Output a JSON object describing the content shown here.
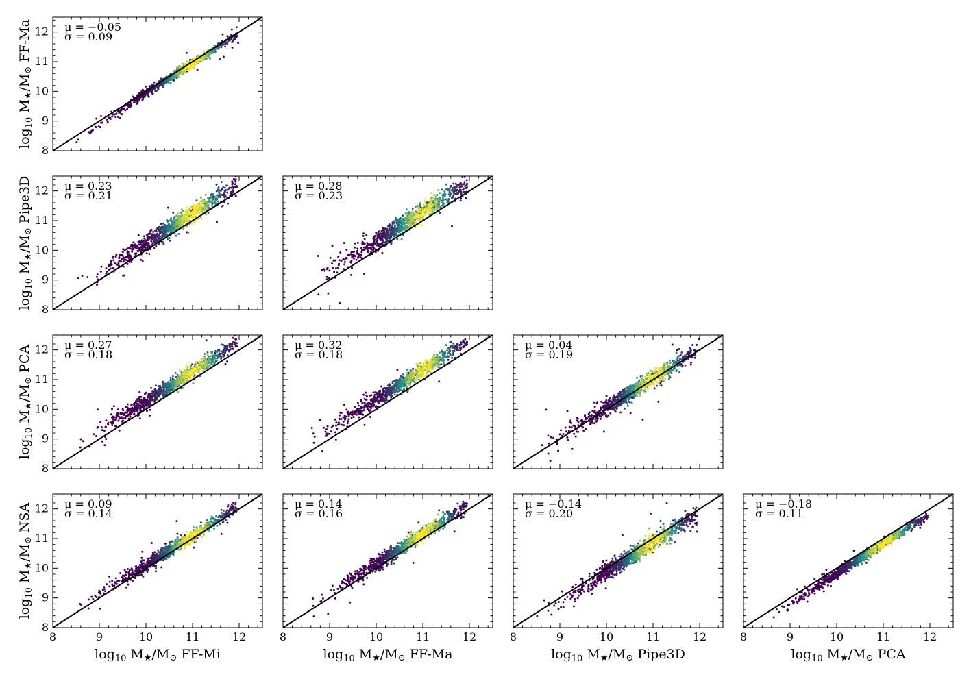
{
  "figure": {
    "description_free": true,
    "axis_range": [
      8,
      12.5
    ],
    "tick_values": [
      8,
      9,
      10,
      11,
      12
    ],
    "tick_labels": [
      "8",
      "9",
      "10",
      "11",
      "12"
    ],
    "colors": {
      "low": "#440154",
      "mid": "#21918c",
      "high": "#fde725",
      "line": "#000000"
    },
    "x_labels": [
      {
        "prefix": "log",
        "sub": "10",
        "mid": " M",
        "star": "★",
        "rest": "/M",
        "sun": "⊙",
        "name": " FF-Mi"
      },
      {
        "prefix": "log",
        "sub": "10",
        "mid": " M",
        "star": "★",
        "rest": "/M",
        "sun": "⊙",
        "name": " FF-Ma"
      },
      {
        "prefix": "log",
        "sub": "10",
        "mid": " M",
        "star": "★",
        "rest": "/M",
        "sun": "⊙",
        "name": " Pipe3D"
      },
      {
        "prefix": "log",
        "sub": "10",
        "mid": " M",
        "star": "★",
        "rest": "/M",
        "sun": "⊙",
        "name": " PCA"
      }
    ],
    "y_labels": [
      {
        "prefix": "log",
        "sub": "10",
        "mid": " M",
        "star": "★",
        "rest": "/M",
        "sun": "⊙",
        "name": " FF-Ma"
      },
      {
        "prefix": "log",
        "sub": "10",
        "mid": " M",
        "star": "★",
        "rest": "/M",
        "sun": "⊙",
        "name": " Pipe3D"
      },
      {
        "prefix": "log",
        "sub": "10",
        "mid": " M",
        "star": "★",
        "rest": "/M",
        "sun": "⊙",
        "name": " PCA"
      },
      {
        "prefix": "log",
        "sub": "10",
        "mid": " M",
        "star": "★",
        "rest": "/M",
        "sun": "⊙",
        "name": " NSA"
      }
    ]
  },
  "chart_data": [
    {
      "type": "scatter",
      "row": 0,
      "col": 0,
      "x_method": "FF-Mi",
      "y_method": "FF-Ma",
      "mu_text": "μ = −0.05",
      "sigma_text": "σ = 0.09",
      "mu": -0.05,
      "sigma": 0.09,
      "xlim": [
        8,
        12.5
      ],
      "ylim": [
        8,
        12.5
      ],
      "one_to_one_line": true
    },
    {
      "type": "scatter",
      "row": 1,
      "col": 0,
      "x_method": "FF-Mi",
      "y_method": "Pipe3D",
      "mu_text": "μ = 0.23",
      "sigma_text": "σ = 0.21",
      "mu": 0.23,
      "sigma": 0.21,
      "xlim": [
        8,
        12.5
      ],
      "ylim": [
        8,
        12.5
      ],
      "one_to_one_line": true
    },
    {
      "type": "scatter",
      "row": 1,
      "col": 1,
      "x_method": "FF-Ma",
      "y_method": "Pipe3D",
      "mu_text": "μ = 0.28",
      "sigma_text": "σ = 0.23",
      "mu": 0.28,
      "sigma": 0.23,
      "xlim": [
        8,
        12.5
      ],
      "ylim": [
        8,
        12.5
      ],
      "one_to_one_line": true
    },
    {
      "type": "scatter",
      "row": 2,
      "col": 0,
      "x_method": "FF-Mi",
      "y_method": "PCA",
      "mu_text": "μ = 0.27",
      "sigma_text": "σ = 0.18",
      "mu": 0.27,
      "sigma": 0.18,
      "xlim": [
        8,
        12.5
      ],
      "ylim": [
        8,
        12.5
      ],
      "one_to_one_line": true
    },
    {
      "type": "scatter",
      "row": 2,
      "col": 1,
      "x_method": "FF-Ma",
      "y_method": "PCA",
      "mu_text": "μ = 0.32",
      "sigma_text": "σ = 0.18",
      "mu": 0.32,
      "sigma": 0.18,
      "xlim": [
        8,
        12.5
      ],
      "ylim": [
        8,
        12.5
      ],
      "one_to_one_line": true
    },
    {
      "type": "scatter",
      "row": 2,
      "col": 2,
      "x_method": "Pipe3D",
      "y_method": "PCA",
      "mu_text": "μ = 0.04",
      "sigma_text": "σ = 0.19",
      "mu": 0.04,
      "sigma": 0.19,
      "xlim": [
        8,
        12.5
      ],
      "ylim": [
        8,
        12.5
      ],
      "one_to_one_line": true
    },
    {
      "type": "scatter",
      "row": 3,
      "col": 0,
      "x_method": "FF-Mi",
      "y_method": "NSA",
      "mu_text": "μ = 0.09",
      "sigma_text": "σ = 0.14",
      "mu": 0.09,
      "sigma": 0.14,
      "xlim": [
        8,
        12.5
      ],
      "ylim": [
        8,
        12.5
      ],
      "one_to_one_line": true
    },
    {
      "type": "scatter",
      "row": 3,
      "col": 1,
      "x_method": "FF-Ma",
      "y_method": "NSA",
      "mu_text": "μ = 0.14",
      "sigma_text": "σ = 0.16",
      "mu": 0.14,
      "sigma": 0.16,
      "xlim": [
        8,
        12.5
      ],
      "ylim": [
        8,
        12.5
      ],
      "one_to_one_line": true
    },
    {
      "type": "scatter",
      "row": 3,
      "col": 2,
      "x_method": "Pipe3D",
      "y_method": "NSA",
      "mu_text": "μ = −0.14",
      "sigma_text": "σ = 0.20",
      "mu": -0.14,
      "sigma": 0.2,
      "xlim": [
        8,
        12.5
      ],
      "ylim": [
        8,
        12.5
      ],
      "one_to_one_line": true
    },
    {
      "type": "scatter",
      "row": 3,
      "col": 3,
      "x_method": "PCA",
      "y_method": "NSA",
      "mu_text": "μ = −0.18",
      "sigma_text": "σ = 0.11",
      "mu": -0.18,
      "sigma": 0.11,
      "xlim": [
        8,
        12.5
      ],
      "ylim": [
        8,
        12.5
      ],
      "one_to_one_line": true
    }
  ]
}
